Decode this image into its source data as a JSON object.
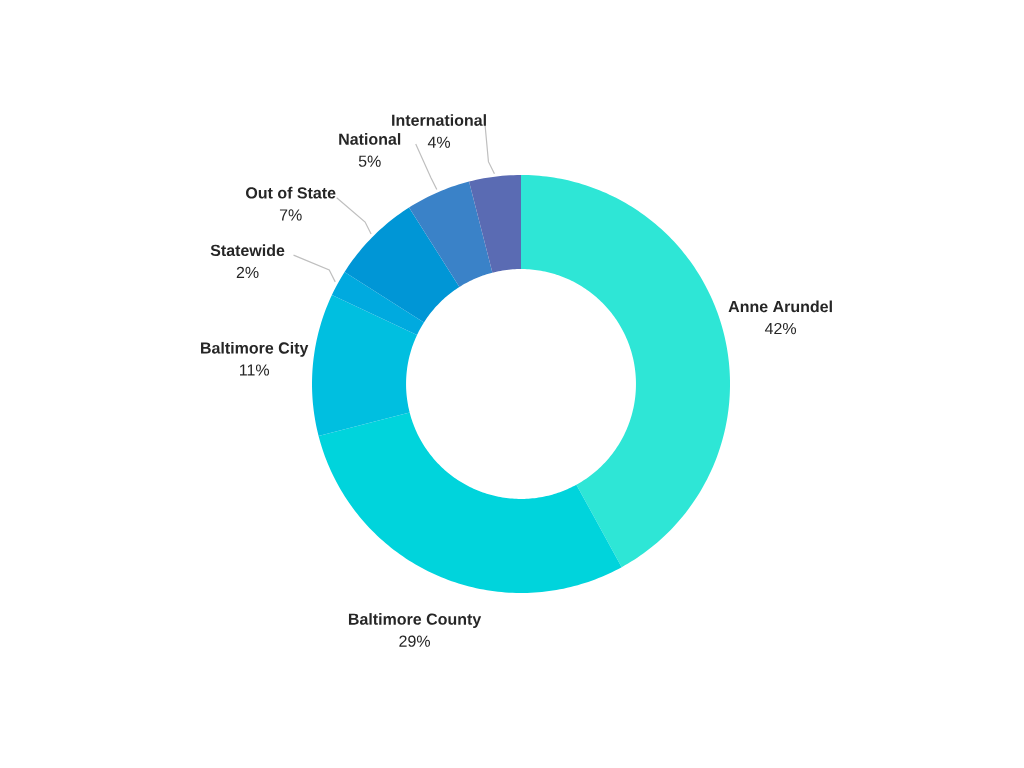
{
  "chart_data": {
    "type": "donut",
    "categories": [
      "Anne Arundel",
      "Baltimore County",
      "Baltimore City",
      "Statewide",
      "Out of State",
      "National",
      "International"
    ],
    "values": [
      42,
      29,
      11,
      2,
      7,
      5,
      4
    ],
    "value_labels": [
      "42%",
      "29%",
      "11%",
      "2%",
      "7%",
      "5%",
      "4%"
    ],
    "colors": [
      "#2ee6d6",
      "#00d4dc",
      "#00bfe0",
      "#00aadf",
      "#0096d6",
      "#3a82c8",
      "#5a6bb3"
    ],
    "data_labels": true
  }
}
